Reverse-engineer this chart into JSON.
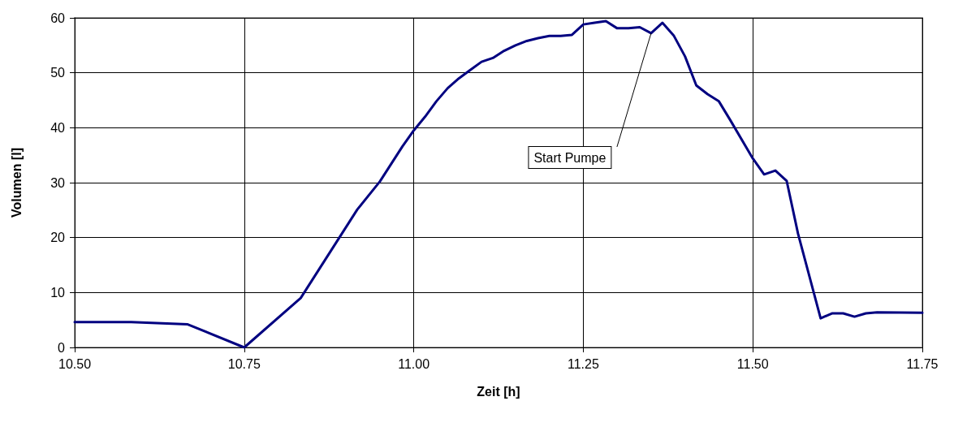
{
  "chart_data": {
    "type": "line",
    "xlabel": "Zeit [h]",
    "ylabel": "Volumen [l]",
    "x": [
      10.5,
      10.5833,
      10.6667,
      10.75,
      10.8333,
      10.9167,
      10.95,
      10.9833,
      11.0,
      11.0167,
      11.0333,
      11.05,
      11.0667,
      11.0833,
      11.1,
      11.1167,
      11.1333,
      11.15,
      11.1667,
      11.1833,
      11.2,
      11.2167,
      11.2333,
      11.25,
      11.2667,
      11.2833,
      11.3,
      11.3167,
      11.3333,
      11.35,
      11.3667,
      11.3833,
      11.4,
      11.4167,
      11.4333,
      11.45,
      11.4667,
      11.5,
      11.5167,
      11.5333,
      11.55,
      11.5667,
      11.6,
      11.6167,
      11.6333,
      11.65,
      11.6667,
      11.6833,
      11.75
    ],
    "series": [
      {
        "color": "#000080",
        "values": [
          4.6,
          4.6,
          4.2,
          0,
          9,
          25.1,
          30.2,
          36.6,
          39.5,
          42,
          44.8,
          47.2,
          49,
          50.5,
          52,
          52.7,
          54,
          55,
          55.8,
          56.3,
          56.7,
          56.7,
          56.9,
          58.8,
          59.1,
          59.4,
          58.1,
          58.1,
          58.3,
          57.2,
          59.1,
          56.8,
          53,
          47.7,
          46.1,
          44.8,
          41.4,
          34.4,
          31.5,
          32.2,
          30.3,
          20.7,
          5.3,
          6.2,
          6.2,
          5.6,
          6.2,
          6.4,
          6.3
        ]
      }
    ],
    "xlim": [
      10.5,
      11.75
    ],
    "xticks": [
      {
        "value": 10.5,
        "label": "10.50"
      },
      {
        "value": 10.75,
        "label": "10.75"
      },
      {
        "value": 11,
        "label": "11.00"
      },
      {
        "value": 11.25,
        "label": "11.25"
      },
      {
        "value": 11.5,
        "label": "11.50"
      },
      {
        "value": 11.75,
        "label": "11.75"
      }
    ],
    "ylim": [
      0,
      60
    ],
    "yticks": [
      0,
      10,
      20,
      30,
      40,
      50,
      60
    ],
    "grid": true,
    "marker": "none",
    "line_style": "solid",
    "annotations": [
      {
        "text": "Start Pumpe",
        "x": 11.35,
        "y": 57.2
      }
    ]
  }
}
